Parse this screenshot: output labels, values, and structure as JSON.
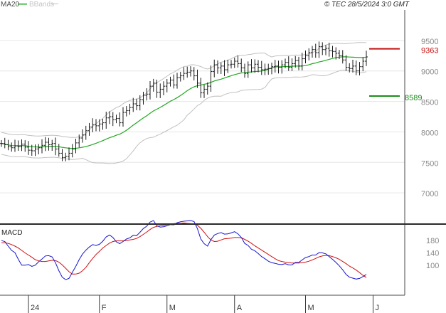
{
  "header": {
    "legend_ma": "MA20",
    "legend_bb": "BBands",
    "source": "© TEC 28/5/2024 3:0 GMT"
  },
  "colors": {
    "price_bars": "#1a1a1a",
    "ma20": "#22a822",
    "bbands": "#c0c0c0",
    "resistance": "#c41010",
    "support": "#1a8f1a",
    "macd_line": "#1515d0",
    "signal_line": "#d01010",
    "grid": "#e6e6e6"
  },
  "chart_data": [
    {
      "type": "ohlc",
      "ylim": [
        6500,
        10000
      ],
      "y_ticks": [
        7000,
        7500,
        8000,
        8500,
        9000,
        9500
      ],
      "grid": true,
      "levels": [
        {
          "name": "9363",
          "value": 9363,
          "color": "red"
        },
        {
          "name": "8589",
          "value": 8589,
          "color": "green"
        }
      ],
      "x_labels": [
        "24",
        "F",
        "M",
        "A",
        "M",
        "J"
      ],
      "x_label_index": [
        8,
        29,
        49,
        69,
        90,
        110
      ],
      "closes": [
        7810,
        7790,
        7760,
        7740,
        7770,
        7760,
        7800,
        7750,
        7700,
        7690,
        7720,
        7740,
        7780,
        7830,
        7790,
        7810,
        7720,
        7650,
        7580,
        7600,
        7650,
        7720,
        7820,
        7900,
        7950,
        8020,
        8080,
        8120,
        8100,
        8130,
        8150,
        8230,
        8250,
        8200,
        8220,
        8150,
        8320,
        8350,
        8400,
        8460,
        8430,
        8530,
        8600,
        8620,
        8750,
        8800,
        8650,
        8700,
        8750,
        8800,
        8850,
        8770,
        8890,
        8920,
        8960,
        8980,
        9000,
        8920,
        8800,
        8640,
        8700,
        8750,
        8990,
        9100,
        9050,
        9080,
        9020,
        9100,
        9110,
        9160,
        9120,
        9050,
        8960,
        9100,
        9050,
        9110,
        9060,
        9020,
        9030,
        9040,
        9070,
        9080,
        9060,
        9100,
        9140,
        9060,
        9120,
        9170,
        9080,
        9200,
        9250,
        9300,
        9350,
        9300,
        9400,
        9350,
        9370,
        9330,
        9320,
        9290,
        9250,
        9180,
        9060,
        9040,
        9080,
        9000,
        9070,
        9160,
        9230
      ]
    },
    {
      "type": "line",
      "title": "MACD",
      "y_ticks": [
        100,
        140,
        180
      ],
      "series": [
        {
          "values": [
            180,
            177,
            162,
            148,
            141,
            119,
            100,
            100,
            102,
            96,
            100,
            111,
            120,
            130,
            131,
            127,
            108,
            82,
            61,
            53,
            57,
            77,
            96,
            118,
            136,
            149,
            159,
            167,
            164,
            168,
            178,
            192,
            198,
            190,
            176,
            170,
            177,
            185,
            189,
            197,
            196,
            207,
            219,
            227,
            240,
            245,
            228,
            224,
            225,
            228,
            232,
            231,
            238,
            241,
            243,
            244,
            245,
            242,
            219,
            185,
            170,
            162,
            183,
            198,
            203,
            206,
            201,
            202,
            205,
            209,
            202,
            190,
            171,
            164,
            152,
            147,
            138,
            128,
            121,
            113,
            108,
            106,
            103,
            102,
            105,
            101,
            101,
            109,
            109,
            117,
            125,
            128,
            133,
            133,
            141,
            140,
            137,
            128,
            119,
            109,
            98,
            85,
            70,
            61,
            58,
            55,
            57,
            63,
            70
          ]
        },
        {
          "values": [
            173,
            173,
            171,
            167,
            162,
            156,
            148,
            140,
            133,
            126,
            118,
            114,
            112,
            112,
            114,
            116,
            115,
            110,
            101,
            90,
            79,
            71,
            71,
            74,
            82,
            93,
            108,
            122,
            135,
            145,
            156,
            164,
            172,
            177,
            179,
            179,
            179,
            180,
            182,
            184,
            187,
            193,
            200,
            208,
            216,
            223,
            226,
            228,
            230,
            232,
            234,
            235,
            236,
            236,
            237,
            236,
            235,
            234,
            230,
            220,
            207,
            193,
            182,
            177,
            178,
            182,
            186,
            187,
            188,
            190,
            190,
            189,
            184,
            178,
            171,
            163,
            156,
            149,
            142,
            135,
            128,
            121,
            115,
            112,
            110,
            108,
            107,
            107,
            107,
            108,
            110,
            113,
            117,
            122,
            127,
            130,
            132,
            131,
            128,
            124,
            119,
            112,
            105,
            97,
            91,
            84,
            76,
            67,
            60
          ]
        }
      ]
    }
  ]
}
